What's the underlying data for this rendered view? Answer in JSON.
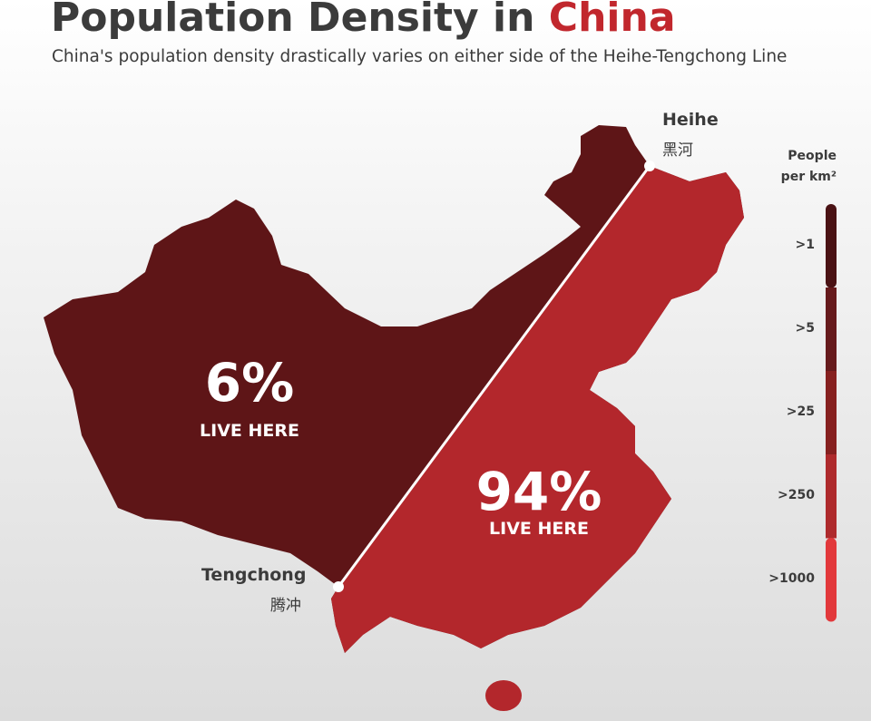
{
  "header": {
    "title": {
      "prefix": "Population Density in",
      "highlight": "China"
    },
    "subtitle": "China's population density drastically varies on either side of the Heihe-Tengchong Line"
  },
  "map": {
    "places": [
      {
        "name": "Heihe",
        "native": "黑河"
      },
      {
        "name": "Tengchong",
        "native": "腾冲"
      }
    ],
    "regions": [
      {
        "share": "6%",
        "caption": "LIVE HERE",
        "color": "#5e1517"
      },
      {
        "share": "94%",
        "caption": "LIVE HERE",
        "color": "#b3272c"
      }
    ]
  },
  "legend": {
    "title": [
      "People",
      "per km²"
    ],
    "items": [
      {
        "label": ">1",
        "color": "#4a1214"
      },
      {
        "label": ">5",
        "color": "#661a1c"
      },
      {
        "label": ">25",
        "color": "#86201f"
      },
      {
        "label": ">250",
        "color": "#ae2a2c"
      },
      {
        "label": ">1000",
        "color": "#e2383b"
      }
    ]
  }
}
